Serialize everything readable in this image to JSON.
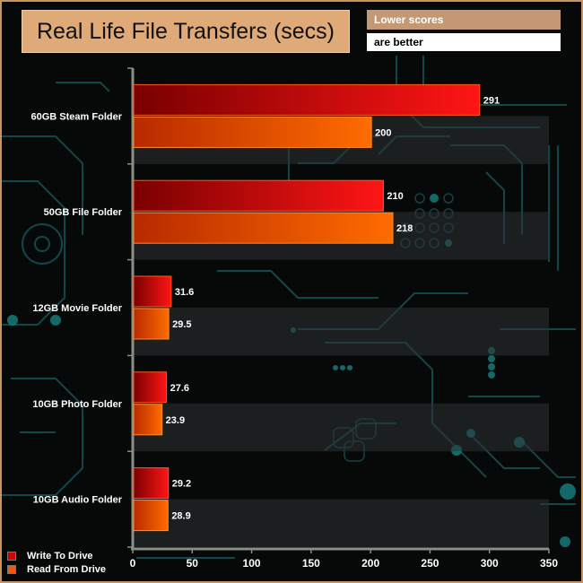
{
  "header": {
    "title": "Real Life File Transfers (secs)",
    "note_line1": "Lower scores",
    "note_line2": "are better"
  },
  "legend": {
    "write": "Write To  Drive",
    "read": "Read From  Drive"
  },
  "colors": {
    "write_dark": "#8a0000",
    "write_light": "#ff1a1a",
    "read_dark": "#c22d00",
    "read_light": "#ff6a00",
    "title_bg": "#e0a978",
    "border": "#c9935e"
  },
  "chart_data": {
    "type": "bar",
    "orientation": "horizontal",
    "title": "Real Life File Transfers (secs)",
    "categories": [
      "60GB Steam Folder",
      "50GB File Folder",
      "12GB Movie Folder",
      "10GB Photo Folder",
      "10GB Audio Folder"
    ],
    "series": [
      {
        "name": "Write To  Drive",
        "values": [
          291,
          210,
          31.6,
          27.6,
          29.2
        ]
      },
      {
        "name": "Read From  Drive",
        "values": [
          200,
          218,
          29.5,
          23.9,
          28.9
        ]
      }
    ],
    "value_labels": [
      [
        "291",
        "210",
        "31.6",
        "27.6",
        "29.2"
      ],
      [
        "200",
        "218",
        "29.5",
        "23.9",
        "28.9"
      ]
    ],
    "xlim": [
      0,
      350
    ],
    "xticks": [
      0,
      50,
      100,
      150,
      200,
      250,
      300,
      350
    ],
    "xlabel": "",
    "ylabel": "",
    "legend_position": "bottom-left"
  }
}
